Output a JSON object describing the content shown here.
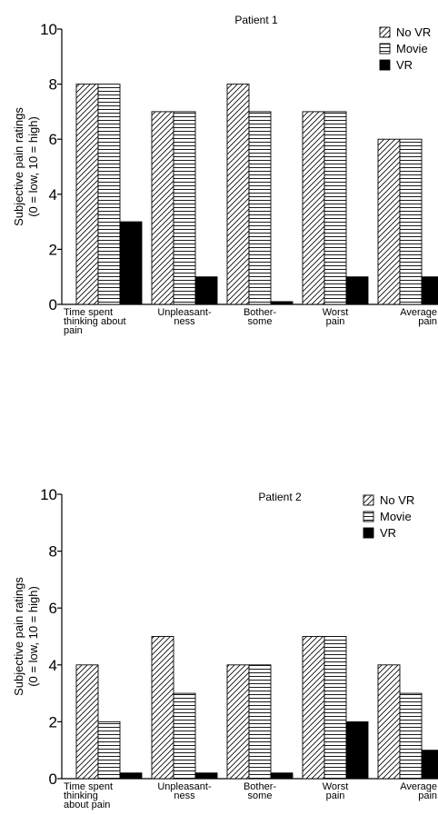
{
  "chart_data": [
    {
      "type": "bar",
      "title": "Patient 1",
      "ylabel_line1": "Subjective pain ratings",
      "ylabel_line2": "(0 = low, 10 = high)",
      "ylim": [
        0,
        10
      ],
      "yticks": [
        "0",
        "2",
        "4",
        "6",
        "8",
        "10"
      ],
      "grid": false,
      "legend_position": "top-right",
      "categories": [
        [
          "Time spent",
          "thinking about",
          "pain"
        ],
        [
          "Unpleasant-",
          "ness"
        ],
        [
          "Bother-",
          "some"
        ],
        [
          "Worst",
          "pain"
        ],
        [
          "Average",
          "pain"
        ]
      ],
      "series": [
        {
          "name": "No VR",
          "pattern": "diagonal",
          "values": [
            8,
            7,
            8,
            7,
            6
          ]
        },
        {
          "name": "Movie",
          "pattern": "horizontal",
          "values": [
            8,
            7,
            7,
            7,
            6
          ]
        },
        {
          "name": "VR",
          "pattern": "solid",
          "values": [
            3,
            1,
            0.1,
            1,
            1
          ]
        }
      ]
    },
    {
      "type": "bar",
      "title": "Patient 2",
      "ylabel_line1": "Subjective pain ratings",
      "ylabel_line2": "(0 = low, 10 = high)",
      "ylim": [
        0,
        10
      ],
      "yticks": [
        "0",
        "2",
        "4",
        "6",
        "8",
        "10"
      ],
      "grid": false,
      "legend_position": "top-right",
      "categories": [
        [
          "Time spent",
          "thinking",
          "about pain"
        ],
        [
          "Unpleasant-",
          "ness"
        ],
        [
          "Bother-",
          "some"
        ],
        [
          "Worst",
          "pain"
        ],
        [
          "Average",
          "pain"
        ]
      ],
      "series": [
        {
          "name": "No VR",
          "pattern": "diagonal",
          "values": [
            4,
            5,
            4,
            5,
            4
          ]
        },
        {
          "name": "Movie",
          "pattern": "horizontal",
          "values": [
            2,
            3,
            4,
            5,
            3
          ]
        },
        {
          "name": "VR",
          "pattern": "solid",
          "values": [
            0.2,
            0.2,
            0.2,
            2,
            1
          ]
        }
      ]
    }
  ]
}
